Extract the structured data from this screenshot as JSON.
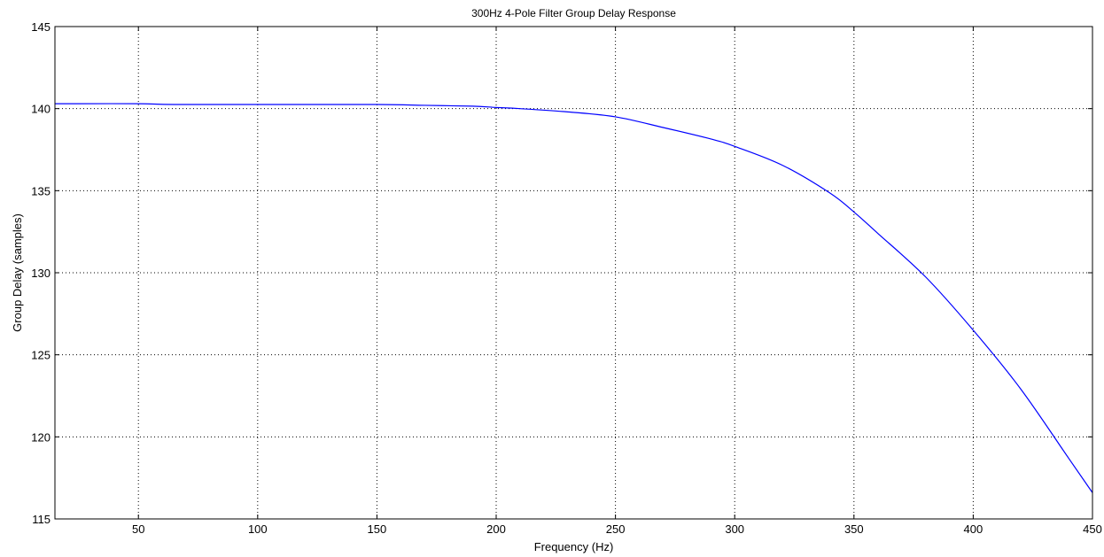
{
  "chart_data": {
    "type": "line",
    "title": "300Hz 4-Pole Filter Group Delay Response",
    "xlabel": "Frequency (Hz)",
    "ylabel": "Group Delay (samples)",
    "xlim": [
      15,
      450
    ],
    "ylim": [
      115,
      145
    ],
    "xticks": [
      50,
      100,
      150,
      200,
      250,
      300,
      350,
      400,
      450
    ],
    "yticks": [
      115,
      120,
      125,
      130,
      135,
      140,
      145
    ],
    "grid": true,
    "series_color": "#0000ff",
    "series": [
      {
        "x": [
          15,
          25,
          50,
          65,
          100,
          150,
          170,
          190,
          200,
          210,
          230,
          250,
          270,
          290,
          300,
          320,
          340,
          350,
          360,
          380,
          400,
          420,
          440,
          450
        ],
        "values": [
          140.3,
          140.3,
          140.3,
          140.25,
          140.25,
          140.25,
          140.2,
          140.15,
          140.07,
          140.0,
          139.8,
          139.5,
          138.85,
          138.15,
          137.7,
          136.55,
          134.85,
          133.7,
          132.4,
          129.75,
          126.5,
          122.9,
          118.7,
          116.6
        ]
      }
    ]
  }
}
